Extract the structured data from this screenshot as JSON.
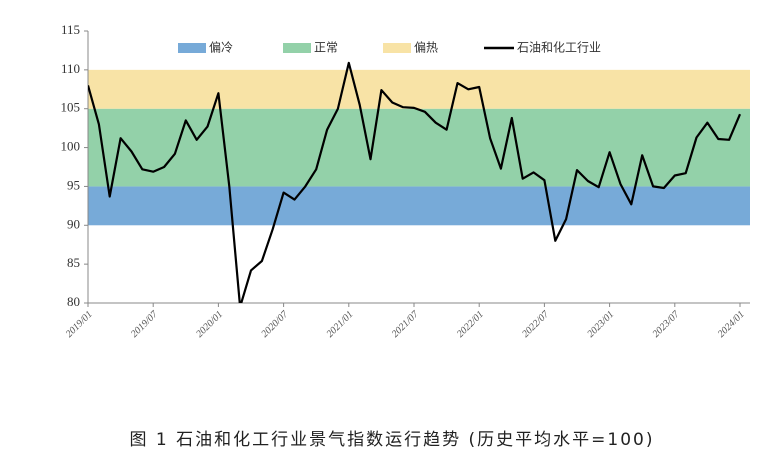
{
  "chart_data": {
    "type": "line",
    "title": "图 1  石油和化工行业景气指数运行趋势 (历史平均水平=100)",
    "categories": [
      "2019/01",
      null,
      null,
      null,
      null,
      null,
      "2019/07",
      null,
      null,
      null,
      null,
      null,
      "2020/01",
      null,
      null,
      null,
      null,
      null,
      "2020/07",
      null,
      null,
      null,
      null,
      null,
      "2021/01",
      null,
      null,
      null,
      null,
      null,
      "2021/07",
      null,
      null,
      null,
      null,
      null,
      "2022/01",
      null,
      null,
      null,
      null,
      null,
      "2022/07",
      null,
      null,
      null,
      null,
      null,
      "2023/01",
      null,
      null,
      null,
      null,
      null,
      "2023/07",
      null,
      null,
      null,
      null,
      null,
      "2024/01"
    ],
    "series": [
      {
        "name": "石油和化工行业",
        "color": "#000000",
        "values": [
          108,
          103,
          93.7,
          101.2,
          99.5,
          97.2,
          96.9,
          97.5,
          99.2,
          103.5,
          101,
          102.7,
          107,
          95,
          79.5,
          84.2,
          85.4,
          89.5,
          94.2,
          93.3,
          95,
          97.2,
          102.3,
          105,
          110.9,
          105.5,
          98.5,
          107.4,
          105.8,
          105.2,
          105.1,
          104.6,
          103.2,
          102.3,
          108.3,
          107.5,
          107.8,
          101.2,
          97.3,
          103.8,
          96,
          96.8,
          95.8,
          88,
          90.8,
          97.1,
          95.7,
          94.9,
          99.4,
          95.3,
          92.7,
          99,
          95,
          94.8,
          96.4,
          96.7,
          101.3,
          103.2,
          101.1,
          101,
          104.3
        ]
      }
    ],
    "bands": [
      {
        "name": "偏冷",
        "color": "#77aad8",
        "range": [
          90,
          95
        ]
      },
      {
        "name": "正常",
        "color": "#93d1a9",
        "range": [
          95,
          105
        ]
      },
      {
        "name": "偏热",
        "color": "#f8e3a6",
        "range": [
          105,
          110
        ]
      }
    ],
    "ylim": [
      80,
      115
    ],
    "yticks": [
      80,
      85,
      90,
      95,
      100,
      105,
      110,
      115
    ]
  }
}
